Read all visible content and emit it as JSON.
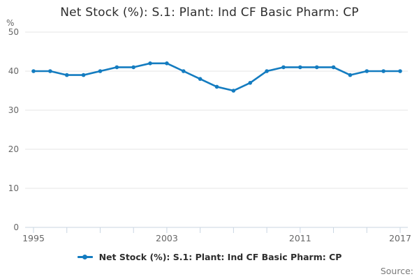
{
  "title": "Net Stock (%): S.1: Plant: Ind CF Basic Pharm: CP",
  "legend": {
    "label": "Net Stock (%): S.1: Plant: Ind CF Basic Pharm: CP"
  },
  "source_label": "Source:",
  "colors": {
    "line": "#147cc0",
    "grid": "#e6e6e6",
    "axis": "#c9d5e2",
    "tick_text": "#666666",
    "title_text": "#2d2d2d"
  },
  "chart_data": {
    "type": "line",
    "title": "Net Stock (%): S.1: Plant: Ind CF Basic Pharm: CP",
    "xlabel": "",
    "ylabel": "%",
    "x": [
      1995,
      1996,
      1997,
      1998,
      1999,
      2000,
      2001,
      2002,
      2003,
      2004,
      2005,
      2006,
      2007,
      2008,
      2009,
      2010,
      2011,
      2012,
      2013,
      2014,
      2015,
      2016,
      2017
    ],
    "series": [
      {
        "name": "Net Stock (%): S.1: Plant: Ind CF Basic Pharm: CP",
        "values": [
          40,
          40,
          39,
          39,
          40,
          41,
          41,
          42,
          42,
          40,
          38,
          36,
          35,
          37,
          40,
          41,
          41,
          41,
          41,
          39,
          40,
          40,
          40
        ]
      }
    ],
    "ylim": [
      0,
      50
    ],
    "ytick_step": 10,
    "xtick_every": 2,
    "xtick_labels": [
      1995,
      2003,
      2011,
      2017
    ],
    "grid": true,
    "legend_position": "bottom",
    "marker": "circle"
  }
}
